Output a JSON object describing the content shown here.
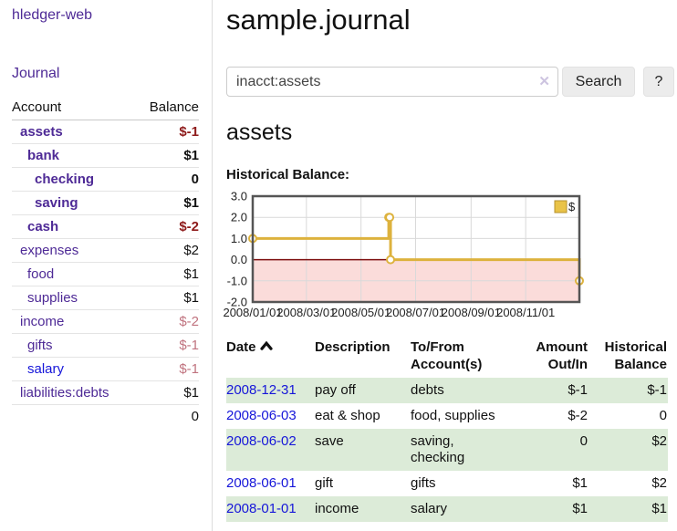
{
  "sidebar": {
    "app_title": "hledger-web",
    "journal_link": "Journal",
    "table": {
      "col_account": "Account",
      "col_balance": "Balance"
    },
    "accounts": [
      {
        "name": "assets",
        "balance": "$-1"
      },
      {
        "name": "bank",
        "balance": "$1"
      },
      {
        "name": "checking",
        "balance": "0"
      },
      {
        "name": "saving",
        "balance": "$1"
      },
      {
        "name": "cash",
        "balance": "$-2"
      },
      {
        "name": "expenses",
        "balance": "$2"
      },
      {
        "name": "food",
        "balance": "$1"
      },
      {
        "name": "supplies",
        "balance": "$1"
      },
      {
        "name": "income",
        "balance": "$-2"
      },
      {
        "name": "gifts",
        "balance": "$-1"
      },
      {
        "name": "salary",
        "balance": "$-1"
      },
      {
        "name": "liabilities:debts",
        "balance": "$1"
      }
    ],
    "total": "0"
  },
  "header": {
    "title": "sample.journal"
  },
  "search": {
    "value": "inacct:assets",
    "clear_icon": "✕",
    "button_label": "Search",
    "help_label": "?"
  },
  "account_page": {
    "heading": "assets",
    "chart_title": "Historical Balance:"
  },
  "chart_data": {
    "type": "line",
    "title": "Historical Balance",
    "step": true,
    "series": [
      {
        "name": "$",
        "points": [
          [
            "2008-01-01",
            1
          ],
          [
            "2008-06-01",
            2
          ],
          [
            "2008-06-02",
            2
          ],
          [
            "2008-06-03",
            0
          ],
          [
            "2008-12-31",
            -1
          ]
        ]
      }
    ],
    "xlim": [
      "2008-01-01",
      "2008-12-31"
    ],
    "ylim": [
      -2,
      3
    ],
    "y_ticks": [
      3,
      2,
      1,
      0,
      -1,
      -2
    ],
    "x_ticks": [
      {
        "date": "2008-01-01",
        "label": "2008/01/01"
      },
      {
        "date": "2008-03-01",
        "label": "2008/03/01"
      },
      {
        "date": "2008-05-01",
        "label": "2008/05/01"
      },
      {
        "date": "2008-07-01",
        "label": "2008/07/01"
      },
      {
        "date": "2008-09-01",
        "label": "2008/09/01"
      },
      {
        "date": "2008-11-01",
        "label": "2008/11/01"
      }
    ],
    "grid": true,
    "legend_position": "top-right",
    "colors": {
      "line": "#ddb23d",
      "marker_fill": "#ffffff",
      "negative_region": "#fbdcda",
      "zero_line": "#7d0e0e",
      "border": "#555555",
      "grid": "#d9d9d9",
      "legend_fill": "#e9c348",
      "legend_border": "#b5902c",
      "tick_text": "#222222"
    }
  },
  "register": {
    "columns": {
      "date": "Date",
      "description": "Description",
      "accounts": "To/From Account(s)",
      "amount": "Amount Out/In",
      "balance": "Historical Balance"
    },
    "rows": [
      {
        "date": "2008-12-31",
        "description": "pay off",
        "accounts": "debts",
        "amount": "$-1",
        "balance": "$-1"
      },
      {
        "date": "2008-06-03",
        "description": "eat & shop",
        "accounts": "food, supplies",
        "amount": "$-2",
        "balance": "0"
      },
      {
        "date": "2008-06-02",
        "description": "save",
        "accounts": "saving, checking",
        "amount": "0",
        "balance": "$2"
      },
      {
        "date": "2008-06-01",
        "description": "gift",
        "accounts": "gifts",
        "amount": "$1",
        "balance": "$2"
      },
      {
        "date": "2008-01-01",
        "description": "income",
        "accounts": "salary",
        "amount": "$1",
        "balance": "$1"
      }
    ]
  },
  "colors": {
    "link_purple": "#4e2a96",
    "link_blue": "#1616d9",
    "negative_red": "#8e1b1b",
    "income_rose": "#c0737f",
    "row_stripe_green": "#dcebd8"
  }
}
